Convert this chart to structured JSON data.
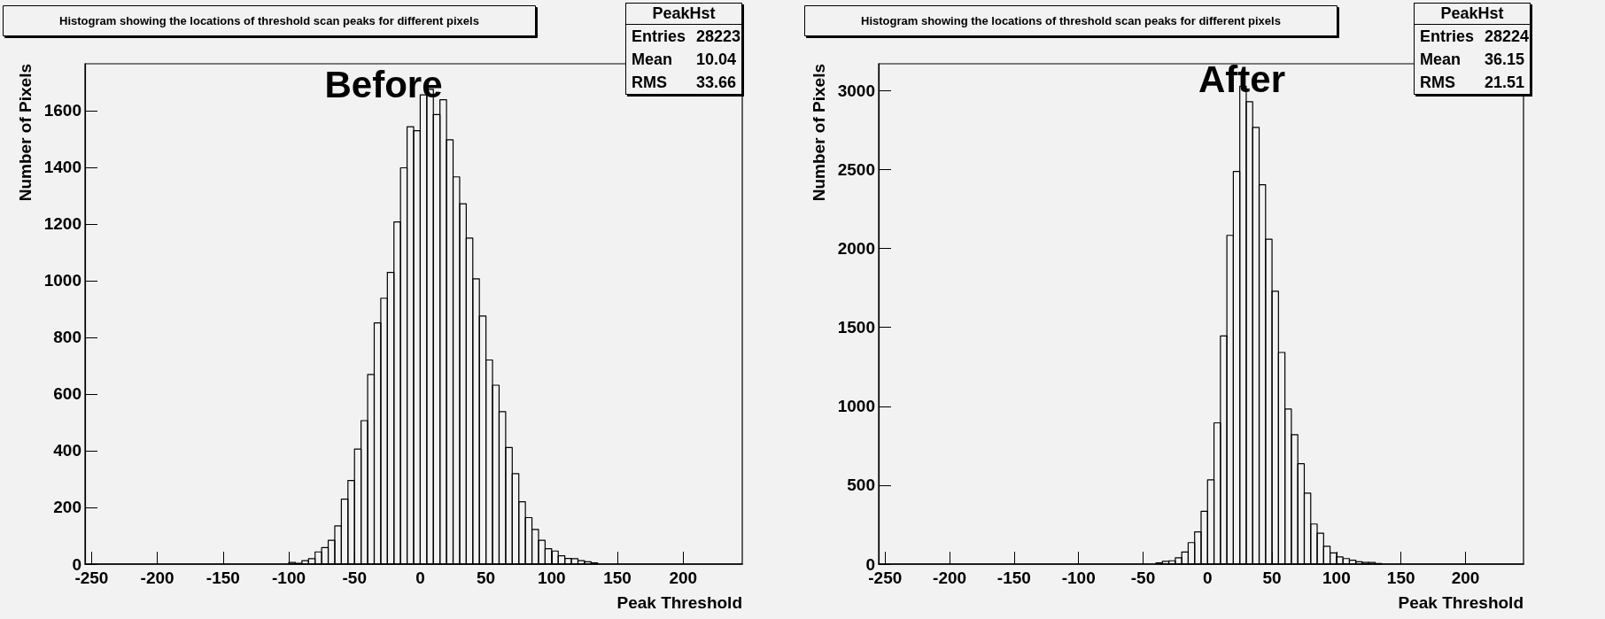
{
  "chart_data": [
    {
      "type": "histogram",
      "title": "Histogram showing the locations of threshold scan peaks for different pixels",
      "xlabel": "Peak Threshold",
      "ylabel": "Number of Pixels",
      "color": "#000000",
      "bins": [
        -100,
        -95,
        -90,
        -85,
        -80,
        -75,
        -70,
        -65,
        -60,
        -55,
        -50,
        -45,
        -40,
        -35,
        -30,
        -25,
        -20,
        -15,
        -10,
        -5,
        0,
        5,
        10,
        15,
        20,
        25,
        30,
        35,
        40,
        45,
        50,
        55,
        60,
        65,
        70,
        75,
        80,
        85,
        90,
        95,
        100,
        105,
        110,
        115,
        120,
        125,
        130,
        135
      ],
      "values": [
        6,
        3,
        12,
        19,
        43,
        58,
        84,
        135,
        229,
        295,
        406,
        506,
        669,
        851,
        938,
        1029,
        1207,
        1398,
        1543,
        1529,
        1655,
        1675,
        1586,
        1638,
        1497,
        1366,
        1271,
        1150,
        1006,
        875,
        720,
        631,
        538,
        411,
        319,
        220,
        164,
        122,
        84,
        54,
        46,
        29,
        20,
        19,
        12,
        8,
        4
      ],
      "xlim": [
        -255,
        245
      ],
      "ylim": [
        0,
        1765
      ],
      "xticks": [
        -250,
        -200,
        -150,
        -100,
        -50,
        0,
        50,
        100,
        150,
        200
      ],
      "yticks": [
        0,
        200,
        400,
        600,
        800,
        1000,
        1200,
        1400,
        1600
      ],
      "annotations": [
        "Before",
        "PeakHst",
        "Entries 28223",
        "Mean 10.04",
        "RMS 33.66"
      ]
    },
    {
      "type": "histogram",
      "title": "Histogram showing the locations of threshold scan peaks for different pixels",
      "xlabel": "Peak Threshold",
      "ylabel": "Number of Pixels",
      "color": "#000000",
      "bins": [
        -40,
        -35,
        -30,
        -25,
        -20,
        -15,
        -10,
        -5,
        0,
        5,
        10,
        15,
        20,
        25,
        30,
        35,
        40,
        45,
        50,
        55,
        60,
        65,
        70,
        75,
        80,
        85,
        90,
        95,
        100,
        105,
        110,
        115,
        120,
        125,
        130,
        135
      ],
      "values": [
        8,
        17,
        21,
        40,
        77,
        136,
        204,
        334,
        534,
        895,
        1445,
        2083,
        2488,
        3028,
        2930,
        2767,
        2403,
        2058,
        1729,
        1341,
        982,
        820,
        636,
        450,
        254,
        196,
        113,
        71,
        46,
        35,
        25,
        15,
        10,
        10,
        4
      ],
      "xlim": [
        -255,
        245
      ],
      "ylim": [
        0,
        3170
      ],
      "xticks": [
        -250,
        -200,
        -150,
        -100,
        -50,
        0,
        50,
        100,
        150,
        200
      ],
      "yticks": [
        0,
        500,
        1000,
        1500,
        2000,
        2500,
        3000
      ],
      "annotations": [
        "After",
        "PeakHst",
        "Entries 28224",
        "Mean 36.15",
        "RMS 21.51"
      ]
    }
  ]
}
